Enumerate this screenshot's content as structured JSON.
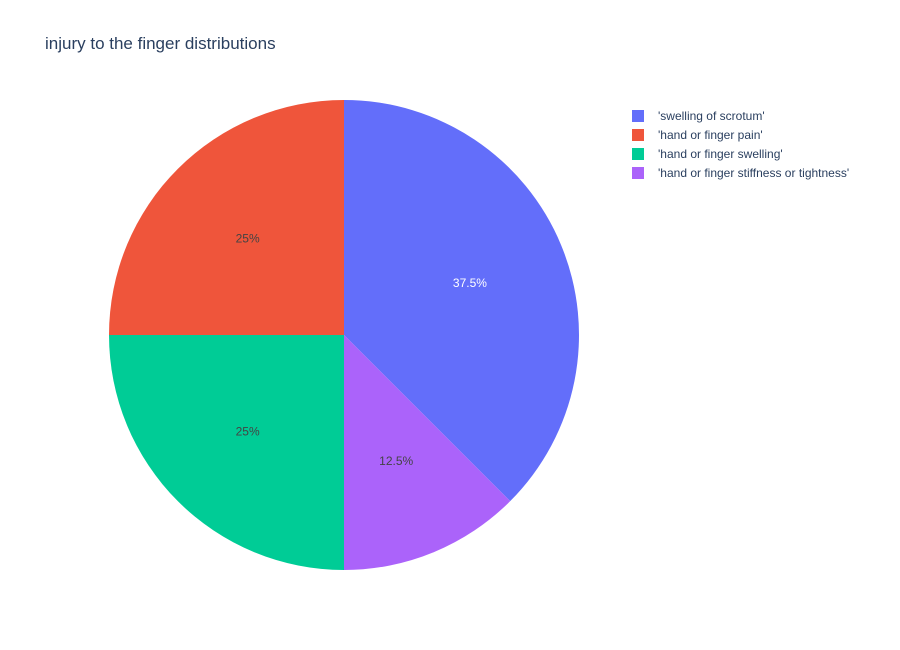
{
  "chart_data": {
    "type": "pie",
    "title": "injury to the finger distributions",
    "labels": [
      "'swelling of scrotum'",
      "'hand or finger pain'",
      "'hand or finger swelling'",
      "'hand or finger stiffness or tightness'"
    ],
    "values": [
      37.5,
      25,
      25,
      12.5
    ],
    "value_labels": [
      "37.5%",
      "25%",
      "25%",
      "12.5%"
    ],
    "colors": [
      "#636efa",
      "#EF553B",
      "#00cc96",
      "#ab63fa"
    ],
    "label_colors": [
      "#ffffff",
      "#444444",
      "#444444",
      "#444444"
    ],
    "legend_order": [
      0,
      1,
      2,
      3
    ],
    "draw_order": [
      0,
      3,
      2,
      1
    ],
    "direction": "clockwise",
    "start_angle_deg": 0,
    "legend_placement": "top-right"
  }
}
